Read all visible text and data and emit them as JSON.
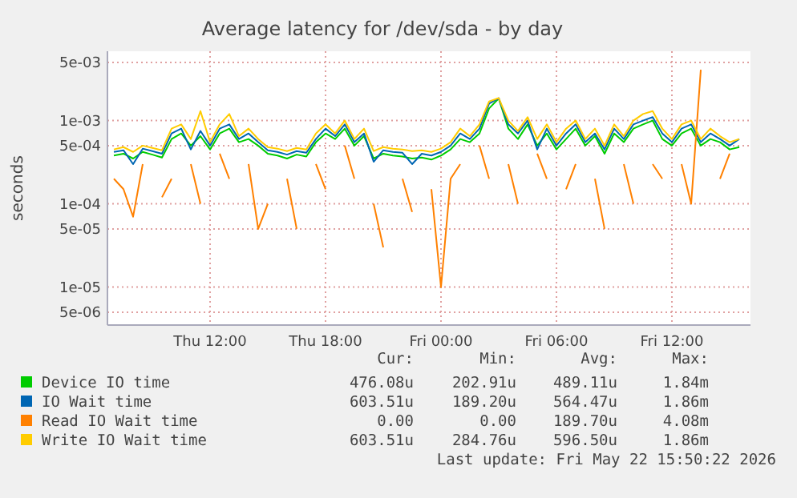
{
  "chart_data": {
    "type": "line",
    "title": "Average latency for /dev/sda - by day",
    "ylabel": "seconds",
    "log": true,
    "grid": true,
    "legend": "bottom",
    "marker": "none",
    "line_style": "solid",
    "x": [
      "2026-05-21T07:00",
      "2026-05-21T07:30",
      "2026-05-21T08:00",
      "2026-05-21T08:30",
      "2026-05-21T09:00",
      "2026-05-21T09:30",
      "2026-05-21T10:00",
      "2026-05-21T10:30",
      "2026-05-21T11:00",
      "2026-05-21T11:30",
      "2026-05-21T12:00",
      "2026-05-21T12:30",
      "2026-05-21T13:00",
      "2026-05-21T13:30",
      "2026-05-21T14:00",
      "2026-05-21T14:30",
      "2026-05-21T15:00",
      "2026-05-21T15:30",
      "2026-05-21T16:00",
      "2026-05-21T16:30",
      "2026-05-21T17:00",
      "2026-05-21T17:30",
      "2026-05-21T18:00",
      "2026-05-21T18:30",
      "2026-05-21T19:00",
      "2026-05-21T19:30",
      "2026-05-21T20:00",
      "2026-05-21T20:30",
      "2026-05-21T21:00",
      "2026-05-21T21:30",
      "2026-05-21T22:00",
      "2026-05-21T22:30",
      "2026-05-21T23:00",
      "2026-05-21T23:30",
      "2026-05-22T00:00",
      "2026-05-22T00:30",
      "2026-05-22T01:00",
      "2026-05-22T01:30",
      "2026-05-22T02:00",
      "2026-05-22T02:30",
      "2026-05-22T03:00",
      "2026-05-22T03:30",
      "2026-05-22T04:00",
      "2026-05-22T04:30",
      "2026-05-22T05:00",
      "2026-05-22T05:30",
      "2026-05-22T06:00",
      "2026-05-22T06:30",
      "2026-05-22T07:00",
      "2026-05-22T07:30",
      "2026-05-22T08:00",
      "2026-05-22T08:30",
      "2026-05-22T09:00",
      "2026-05-22T09:30",
      "2026-05-22T10:00",
      "2026-05-22T10:30",
      "2026-05-22T11:00",
      "2026-05-22T11:30",
      "2026-05-22T12:00",
      "2026-05-22T12:30",
      "2026-05-22T13:00",
      "2026-05-22T13:30",
      "2026-05-22T14:00",
      "2026-05-22T14:30",
      "2026-05-22T15:00",
      "2026-05-22T15:30"
    ],
    "xlim": [
      "2026-05-21T06:40",
      "2026-05-22T16:05"
    ],
    "xticks": [
      {
        "value": "2026-05-21T12:00",
        "label": "Thu 12:00"
      },
      {
        "value": "2026-05-21T18:00",
        "label": "Thu 18:00"
      },
      {
        "value": "2026-05-22T00:00",
        "label": "Fri 00:00"
      },
      {
        "value": "2026-05-22T06:00",
        "label": "Fri 06:00"
      },
      {
        "value": "2026-05-22T12:00",
        "label": "Fri 12:00"
      }
    ],
    "ylim": [
      3.5e-06,
      0.0068
    ],
    "yticks": [
      {
        "value": 0.005,
        "label": "5e-03"
      },
      {
        "value": 0.001,
        "label": "1e-03"
      },
      {
        "value": 0.0005,
        "label": "5e-04"
      },
      {
        "value": 0.0001,
        "label": "1e-04"
      },
      {
        "value": 5e-05,
        "label": "5e-05"
      },
      {
        "value": 1e-05,
        "label": "1e-05"
      },
      {
        "value": 5e-06,
        "label": "5e-06"
      }
    ],
    "series": [
      {
        "name": "Device IO time",
        "color": "#00cc00",
        "values": [
          0.00038,
          0.0004,
          0.00035,
          0.00042,
          0.00039,
          0.00036,
          0.0006,
          0.0007,
          0.0005,
          0.00065,
          0.00045,
          0.0007,
          0.0008,
          0.00055,
          0.0006,
          0.0005,
          0.0004,
          0.00038,
          0.00035,
          0.00039,
          0.00037,
          0.00055,
          0.0007,
          0.0006,
          0.0008,
          0.0005,
          0.00065,
          0.00035,
          0.0004,
          0.00038,
          0.00037,
          0.00035,
          0.00036,
          0.00034,
          0.00038,
          0.00045,
          0.0006,
          0.00055,
          0.0007,
          0.0014,
          0.00184,
          0.0008,
          0.0006,
          0.0009,
          0.0005,
          0.0007,
          0.00045,
          0.0006,
          0.0008,
          0.0005,
          0.00065,
          0.0004,
          0.0007,
          0.00055,
          0.0008,
          0.0009,
          0.001,
          0.0006,
          0.0005,
          0.0007,
          0.0008,
          0.0005,
          0.0006,
          0.00055,
          0.00045,
          0.00048
        ]
      },
      {
        "name": "IO Wait time",
        "color": "#0066b3",
        "values": [
          0.00042,
          0.00044,
          0.0003,
          0.00046,
          0.00043,
          0.0004,
          0.0007,
          0.0008,
          0.00045,
          0.00075,
          0.0005,
          0.0008,
          0.0009,
          0.0006,
          0.0007,
          0.00055,
          0.00044,
          0.00042,
          0.00039,
          0.00043,
          0.00041,
          0.0006,
          0.0008,
          0.00065,
          0.0009,
          0.00055,
          0.0007,
          0.00032,
          0.00044,
          0.00042,
          0.00041,
          0.0003,
          0.0004,
          0.00038,
          0.00042,
          0.0005,
          0.0007,
          0.0006,
          0.0008,
          0.0016,
          0.00186,
          0.0009,
          0.0007,
          0.001,
          0.00045,
          0.0008,
          0.0005,
          0.0007,
          0.0009,
          0.00055,
          0.0007,
          0.00045,
          0.0008,
          0.0006,
          0.0009,
          0.001,
          0.0011,
          0.0007,
          0.00055,
          0.0008,
          0.0009,
          0.00055,
          0.0007,
          0.0006,
          0.0005,
          0.0006
        ]
      },
      {
        "name": "Read IO Wait time",
        "color": "#ff8000",
        "values": [
          0.0002,
          0.00015,
          7e-05,
          0.0003,
          null,
          0.00012,
          0.0002,
          null,
          0.0003,
          0.0001,
          null,
          0.0004,
          0.0002,
          null,
          0.0003,
          5e-05,
          0.0001,
          null,
          0.0002,
          5e-05,
          null,
          0.0003,
          0.00015,
          null,
          0.0005,
          0.0002,
          null,
          0.0001,
          3e-05,
          null,
          0.0002,
          8e-05,
          null,
          0.00015,
          1e-05,
          0.0002,
          0.0003,
          null,
          0.0005,
          0.0002,
          null,
          0.0003,
          0.0001,
          null,
          0.0004,
          0.0002,
          null,
          0.00015,
          0.0003,
          null,
          0.0002,
          5e-05,
          null,
          0.0003,
          0.0001,
          null,
          0.0003,
          0.0002,
          null,
          0.0003,
          0.0001,
          0.00408,
          null,
          0.0002,
          0.0004,
          null
        ]
      },
      {
        "name": "Write IO Wait time",
        "color": "#ffcc00",
        "values": [
          0.00045,
          0.00048,
          0.00042,
          0.0005,
          0.00047,
          0.00044,
          0.0008,
          0.0009,
          0.0006,
          0.0013,
          0.00055,
          0.0009,
          0.0012,
          0.00065,
          0.0008,
          0.0006,
          0.00048,
          0.00046,
          0.00043,
          0.00047,
          0.00045,
          0.0007,
          0.0009,
          0.0007,
          0.001,
          0.0006,
          0.0008,
          0.00043,
          0.00048,
          0.00046,
          0.00045,
          0.00043,
          0.00044,
          0.00042,
          0.00046,
          0.00055,
          0.0008,
          0.00065,
          0.0009,
          0.0017,
          0.00186,
          0.001,
          0.00075,
          0.0011,
          0.0006,
          0.0009,
          0.00055,
          0.0008,
          0.001,
          0.0006,
          0.0008,
          0.0005,
          0.0009,
          0.00065,
          0.001,
          0.0012,
          0.0013,
          0.0008,
          0.0006,
          0.0009,
          0.001,
          0.0006,
          0.0008,
          0.00065,
          0.00055,
          0.0006
        ]
      }
    ],
    "annotations": [
      "Cur:",
      "Min:",
      "Avg:",
      "Max:",
      "476.08u",
      "202.91u",
      "489.11u",
      "1.84m",
      "603.51u",
      "189.20u",
      "564.47u",
      "1.86m",
      "0.00",
      "0.00",
      "189.70u",
      "4.08m",
      "603.51u",
      "284.76u",
      "596.50u",
      "1.86m",
      "Last update: Fri May 22 15:50:22 2026"
    ]
  }
}
